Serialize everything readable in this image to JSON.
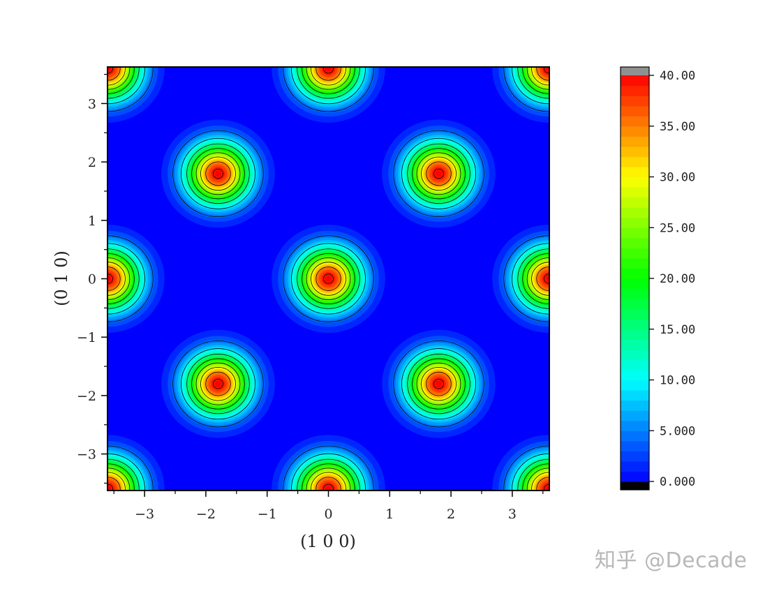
{
  "chart_data": {
    "type": "heatmap",
    "title": "",
    "xlabel": "(1 0 0)",
    "ylabel": "(0 1 0)",
    "xlim": [
      -3.6,
      3.6
    ],
    "ylim": [
      -3.6,
      3.6
    ],
    "x_ticks": [
      "-3",
      "-2",
      "-1",
      "0",
      "1",
      "2",
      "3"
    ],
    "y_ticks": [
      "3",
      "2",
      "1",
      "0",
      "-1",
      "-2",
      "-3"
    ],
    "peaks": [
      {
        "x": 0,
        "y": 0,
        "value": 41
      },
      {
        "x": -1.8,
        "y": 1.8,
        "value": 41
      },
      {
        "x": 1.8,
        "y": 1.8,
        "value": 41
      },
      {
        "x": -1.8,
        "y": -1.8,
        "value": 41
      },
      {
        "x": 1.8,
        "y": -1.8,
        "value": 41
      },
      {
        "x": -3.6,
        "y": 0,
        "value": 41
      },
      {
        "x": 3.6,
        "y": 0,
        "value": 41
      },
      {
        "x": 0,
        "y": 3.6,
        "value": 41
      },
      {
        "x": 0,
        "y": -3.6,
        "value": 41
      },
      {
        "x": -3.6,
        "y": 3.6,
        "value": 41
      },
      {
        "x": 3.6,
        "y": 3.6,
        "value": 41
      },
      {
        "x": -3.6,
        "y": -3.6,
        "value": 41
      },
      {
        "x": 3.6,
        "y": -3.6,
        "value": 41
      }
    ],
    "peak_width": 0.36,
    "contour_levels": [
      5,
      10,
      15,
      20,
      25,
      30,
      35,
      40
    ],
    "colorbar": {
      "min": 0,
      "max": 40,
      "labels": [
        "40.00",
        "35.00",
        "30.00",
        "25.00",
        "20.00",
        "15.00",
        "10.00",
        "5.000",
        "0.000"
      ],
      "label_values": [
        40,
        35,
        30,
        25,
        20,
        15,
        10,
        5,
        0
      ],
      "under_color": "#000000",
      "over_color": "#909090",
      "colors": [
        "#0000ff",
        "#00ffff",
        "#00ff00",
        "#ffff00",
        "#ff0000"
      ]
    }
  },
  "watermark": "知乎 @Decade"
}
